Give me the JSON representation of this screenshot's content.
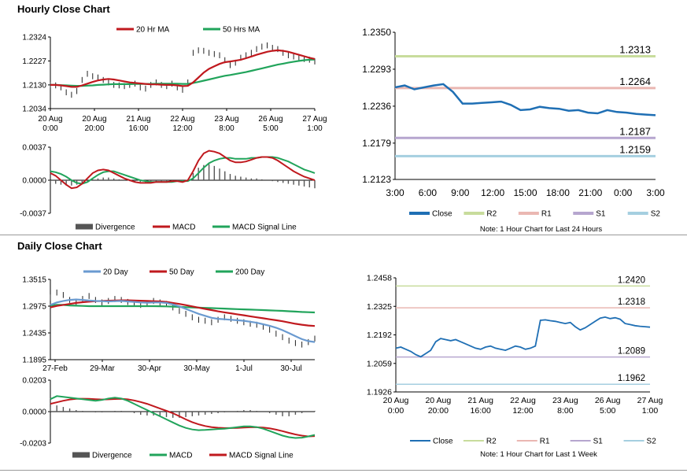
{
  "sections": {
    "hourly_title": "Hourly Close Chart",
    "daily_title": "Daily Close Chart"
  },
  "colors": {
    "close": "#1f6fb4",
    "ma_red": "#c0191e",
    "ma_green": "#21a45b",
    "ma_blue": "#6a9ad0",
    "r2": "#c8dc9c",
    "r1": "#eab7b2",
    "s1": "#b6a6cf",
    "s2": "#a5cfe0",
    "bar": "#555555"
  },
  "chart_data": [
    {
      "id": "hourly-price",
      "type": "line",
      "title": "Hourly Close Chart",
      "x_labels": [
        [
          "20 Aug",
          "0:00"
        ],
        [
          "20 Aug",
          "20:00"
        ],
        [
          "21 Aug",
          "16:00"
        ],
        [
          "22 Aug",
          "12:00"
        ],
        [
          "23 Aug",
          "8:00"
        ],
        [
          "26 Aug",
          "5:00"
        ],
        [
          "27 Aug",
          "1:00"
        ]
      ],
      "y_ticks": [
        "1.2324",
        "1.2227",
        "1.2130",
        "1.2034"
      ],
      "ylim": [
        1.2034,
        1.2324
      ],
      "legend": [
        "20 Hr MA",
        "50 Hrs MA"
      ],
      "close": [
        1.213,
        1.2128,
        1.212,
        1.21,
        1.209,
        1.2105,
        1.215,
        1.2175,
        1.2165,
        1.216,
        1.215,
        1.214,
        1.213,
        1.2128,
        1.2125,
        1.213,
        1.2135,
        1.212,
        1.2115,
        1.213,
        1.214,
        1.213,
        1.2125,
        1.2135,
        1.212,
        1.211,
        1.214,
        1.226,
        1.227,
        1.2268,
        1.226,
        1.2255,
        1.225,
        1.223,
        1.221,
        1.222,
        1.224,
        1.225,
        1.226,
        1.2275,
        1.2285,
        1.229,
        1.228,
        1.2275,
        1.226,
        1.225,
        1.2245,
        1.224,
        1.2235,
        1.2232,
        1.2225
      ],
      "ma20": [
        1.213,
        1.213,
        1.2128,
        1.2125,
        1.2122,
        1.2122,
        1.2128,
        1.2135,
        1.2142,
        1.2148,
        1.2152,
        1.2154,
        1.2152,
        1.2148,
        1.2144,
        1.214,
        1.2138,
        1.2136,
        1.2134,
        1.2132,
        1.2132,
        1.2131,
        1.213,
        1.213,
        1.2128,
        1.2125,
        1.2126,
        1.214,
        1.216,
        1.218,
        1.2195,
        1.2205,
        1.2215,
        1.2222,
        1.2225,
        1.2228,
        1.2232,
        1.2238,
        1.2245,
        1.2252,
        1.2258,
        1.2264,
        1.2268,
        1.227,
        1.2268,
        1.2264,
        1.2258,
        1.2252,
        1.2246,
        1.224,
        1.2235
      ],
      "ma50": [
        1.213,
        1.213,
        1.2129,
        1.2128,
        1.2127,
        1.2126,
        1.2126,
        1.2127,
        1.2128,
        1.213,
        1.2131,
        1.2132,
        1.2133,
        1.2133,
        1.2133,
        1.2133,
        1.2134,
        1.2134,
        1.2134,
        1.2134,
        1.2135,
        1.2135,
        1.2135,
        1.2135,
        1.2135,
        1.2134,
        1.2134,
        1.2138,
        1.2142,
        1.2147,
        1.2152,
        1.2157,
        1.2162,
        1.2167,
        1.217,
        1.2174,
        1.2178,
        1.2182,
        1.2187,
        1.2192,
        1.2197,
        1.2202,
        1.2207,
        1.2212,
        1.2216,
        1.222,
        1.2224,
        1.2227,
        1.223,
        1.2232,
        1.2233
      ]
    },
    {
      "id": "hourly-macd",
      "type": "line",
      "y_ticks": [
        "0.0037",
        "0.0000",
        "-0.0037"
      ],
      "ylim": [
        -0.0037,
        0.0037
      ],
      "legend": [
        "Divergence",
        "MACD",
        "MACD Signal Line"
      ],
      "divergence": [
        -0.0002,
        -0.0004,
        -0.0005,
        -0.0006,
        -0.0006,
        -0.0005,
        -0.0003,
        -0.0001,
        0.0001,
        0.0002,
        0.0003,
        0.0003,
        0.0002,
        0.0001,
        0.0,
        -0.0001,
        -0.0002,
        -0.0002,
        -0.0003,
        -0.0003,
        -0.0002,
        -0.0002,
        -0.0002,
        -0.0001,
        -0.0001,
        -0.0001,
        0.0,
        0.0008,
        0.0014,
        0.0017,
        0.0018,
        0.0016,
        0.0013,
        0.001,
        0.0007,
        0.0005,
        0.0004,
        0.0003,
        0.0002,
        0.0002,
        0.0001,
        0.0,
        -0.0001,
        -0.0002,
        -0.0003,
        -0.0004,
        -0.0005,
        -0.0006,
        -0.0007,
        -0.0008,
        -0.0009
      ],
      "macd": [
        0.0008,
        0.0005,
        0.0,
        -0.0005,
        -0.0009,
        -0.0008,
        -0.0004,
        0.0002,
        0.0008,
        0.0011,
        0.0012,
        0.0011,
        0.0008,
        0.0005,
        0.0002,
        0.0,
        -0.0002,
        -0.0003,
        -0.0003,
        -0.0003,
        -0.0002,
        -0.0002,
        -0.0002,
        -0.0001,
        -0.0001,
        -0.0002,
        0.0,
        0.001,
        0.0022,
        0.003,
        0.0033,
        0.0032,
        0.003,
        0.0026,
        0.0022,
        0.002,
        0.002,
        0.0021,
        0.0023,
        0.0025,
        0.0026,
        0.0026,
        0.0025,
        0.0022,
        0.0018,
        0.0014,
        0.001,
        0.0007,
        0.0004,
        0.0002,
        0.0
      ],
      "signal": [
        0.001,
        0.0009,
        0.0007,
        0.0004,
        0.0,
        -0.0003,
        -0.0004,
        -0.0002,
        0.0002,
        0.0006,
        0.0009,
        0.001,
        0.001,
        0.0008,
        0.0006,
        0.0004,
        0.0002,
        0.0,
        -0.0001,
        -0.0002,
        -0.0002,
        -0.0002,
        -0.0002,
        -0.0002,
        -0.0001,
        -0.0001,
        -0.0001,
        0.0002,
        0.0008,
        0.0014,
        0.0019,
        0.0022,
        0.0024,
        0.0025,
        0.0025,
        0.0024,
        0.0024,
        0.0024,
        0.0025,
        0.0025,
        0.0026,
        0.0026,
        0.0026,
        0.0025,
        0.0023,
        0.0021,
        0.0018,
        0.0015,
        0.0012,
        0.001,
        0.0008
      ]
    },
    {
      "id": "hourly-levels",
      "type": "line",
      "x_labels": [
        "3:00",
        "6:00",
        "9:00",
        "12:00",
        "15:00",
        "18:00",
        "21:00",
        "0:00",
        "3:00"
      ],
      "y_ticks": [
        "1.2350",
        "1.2293",
        "1.2236",
        "1.2179",
        "1.2123"
      ],
      "ylim": [
        1.2123,
        1.235
      ],
      "close": [
        1.2265,
        1.2268,
        1.2262,
        1.2265,
        1.2268,
        1.227,
        1.2258,
        1.224,
        1.224,
        1.2241,
        1.2242,
        1.2243,
        1.2238,
        1.223,
        1.2231,
        1.2235,
        1.2233,
        1.2232,
        1.2229,
        1.223,
        1.2226,
        1.2225,
        1.223,
        1.2227,
        1.2226,
        1.2224,
        1.2223,
        1.2222
      ],
      "levels": [
        {
          "key": "r2",
          "name": "R2",
          "value": 1.2313,
          "label": "1.2313"
        },
        {
          "key": "r1",
          "name": "R1",
          "value": 1.2264,
          "label": "1.2264"
        },
        {
          "key": "s1",
          "name": "S1",
          "value": 1.2187,
          "label": "1.2187"
        },
        {
          "key": "s2",
          "name": "S2",
          "value": 1.2159,
          "label": "1.2159"
        }
      ],
      "legend": [
        "Close",
        "R2",
        "R1",
        "S1",
        "S2"
      ],
      "note": "Note: 1 Hour Chart for Last 24 Hours"
    },
    {
      "id": "daily-price",
      "type": "line",
      "title": "Daily Close Chart",
      "x_labels": [
        "27-Feb",
        "29-Mar",
        "30-Apr",
        "30-May",
        "1-Jul",
        "30-Jul"
      ],
      "y_ticks": [
        "1.3515",
        "1.2975",
        "1.2435",
        "1.1895"
      ],
      "ylim": [
        1.1895,
        1.3515
      ],
      "legend": [
        "20 Day",
        "50 Day",
        "200 Day"
      ],
      "close": [
        1.315,
        1.325,
        1.32,
        1.31,
        1.305,
        1.312,
        1.318,
        1.31,
        1.305,
        1.308,
        1.312,
        1.31,
        1.306,
        1.302,
        1.3,
        1.303,
        1.308,
        1.305,
        1.302,
        1.295,
        1.288,
        1.282,
        1.275,
        1.27,
        1.268,
        1.265,
        1.27,
        1.275,
        1.272,
        1.268,
        1.265,
        1.262,
        1.26,
        1.256,
        1.25,
        1.242,
        1.235,
        1.228,
        1.223,
        1.22,
        1.225,
        1.232
      ],
      "ma20": [
        1.3,
        1.305,
        1.308,
        1.31,
        1.311,
        1.31,
        1.309,
        1.308,
        1.3075,
        1.307,
        1.3075,
        1.308,
        1.307,
        1.306,
        1.305,
        1.3045,
        1.305,
        1.305,
        1.304,
        1.301,
        1.297,
        1.292,
        1.287,
        1.282,
        1.278,
        1.274,
        1.272,
        1.271,
        1.27,
        1.269,
        1.268,
        1.266,
        1.264,
        1.261,
        1.258,
        1.254,
        1.249,
        1.243,
        1.237,
        1.231,
        1.227,
        1.225
      ],
      "ma50": [
        1.295,
        1.298,
        1.3,
        1.302,
        1.304,
        1.3055,
        1.3065,
        1.3075,
        1.308,
        1.3085,
        1.309,
        1.3092,
        1.3092,
        1.309,
        1.3085,
        1.308,
        1.3075,
        1.307,
        1.306,
        1.304,
        1.302,
        1.2995,
        1.297,
        1.2945,
        1.292,
        1.2895,
        1.287,
        1.285,
        1.283,
        1.281,
        1.279,
        1.277,
        1.275,
        1.273,
        1.271,
        1.269,
        1.267,
        1.2645,
        1.262,
        1.26,
        1.2585,
        1.2575
      ],
      "ma200": [
        1.299,
        1.3,
        1.3,
        1.299,
        1.2985,
        1.298,
        1.2975,
        1.2975,
        1.2975,
        1.2975,
        1.2975,
        1.2975,
        1.2975,
        1.2975,
        1.2975,
        1.2975,
        1.2975,
        1.2973,
        1.297,
        1.2965,
        1.296,
        1.2955,
        1.295,
        1.2945,
        1.294,
        1.2935,
        1.293,
        1.2925,
        1.292,
        1.2915,
        1.291,
        1.2905,
        1.29,
        1.2895,
        1.289,
        1.2885,
        1.288,
        1.2872,
        1.2865,
        1.2858,
        1.2852,
        1.2848
      ]
    },
    {
      "id": "daily-macd",
      "type": "line",
      "y_ticks": [
        "0.0203",
        "0.0000",
        "-0.0203"
      ],
      "ylim": [
        -0.0203,
        0.0203
      ],
      "legend": [
        "Divergence",
        "MACD",
        "MACD Signal Line"
      ],
      "divergence": [
        0.003,
        0.004,
        0.003,
        0.002,
        0.001,
        0.0005,
        0.0,
        -0.0005,
        -0.0005,
        0.0,
        0.0005,
        0.0005,
        0.0,
        -0.001,
        -0.002,
        -0.0025,
        -0.0025,
        -0.003,
        -0.0035,
        -0.004,
        -0.004,
        -0.0035,
        -0.003,
        -0.0025,
        -0.002,
        -0.0015,
        -0.001,
        -0.0005,
        0.0,
        0.0005,
        0.001,
        0.001,
        0.0005,
        0.0,
        -0.001,
        -0.002,
        -0.003,
        -0.003,
        -0.002,
        -0.001,
        0.0,
        0.0005
      ],
      "macd": [
        0.008,
        0.01,
        0.0095,
        0.009,
        0.0085,
        0.008,
        0.0075,
        0.007,
        0.0075,
        0.0085,
        0.009,
        0.0085,
        0.007,
        0.005,
        0.003,
        0.001,
        -0.001,
        -0.003,
        -0.005,
        -0.007,
        -0.009,
        -0.0105,
        -0.0115,
        -0.012,
        -0.0118,
        -0.0115,
        -0.0112,
        -0.011,
        -0.0105,
        -0.01,
        -0.0095,
        -0.0095,
        -0.01,
        -0.011,
        -0.0125,
        -0.014,
        -0.0155,
        -0.0165,
        -0.017,
        -0.0168,
        -0.016,
        -0.015
      ],
      "signal": [
        0.005,
        0.006,
        0.007,
        0.0078,
        0.0082,
        0.0083,
        0.0082,
        0.008,
        0.0078,
        0.0079,
        0.0081,
        0.0082,
        0.0079,
        0.0072,
        0.0062,
        0.005,
        0.0035,
        0.002,
        0.0005,
        -0.001,
        -0.003,
        -0.005,
        -0.0068,
        -0.0082,
        -0.0093,
        -0.01,
        -0.0104,
        -0.0106,
        -0.0106,
        -0.0105,
        -0.0103,
        -0.0101,
        -0.0101,
        -0.0103,
        -0.0108,
        -0.0116,
        -0.0126,
        -0.0137,
        -0.0147,
        -0.0155,
        -0.016,
        -0.0158
      ]
    },
    {
      "id": "daily-levels",
      "type": "line",
      "x_labels": [
        [
          "20 Aug",
          "0:00"
        ],
        [
          "20 Aug",
          "20:00"
        ],
        [
          "21 Aug",
          "16:00"
        ],
        [
          "22 Aug",
          "12:00"
        ],
        [
          "23 Aug",
          "8:00"
        ],
        [
          "26 Aug",
          "5:00"
        ],
        [
          "27 Aug",
          "1:00"
        ]
      ],
      "y_ticks": [
        "1.2458",
        "1.2325",
        "1.2192",
        "1.2059",
        "1.1926"
      ],
      "ylim": [
        1.1926,
        1.2458
      ],
      "close": [
        1.213,
        1.2135,
        1.2125,
        1.2115,
        1.21,
        1.209,
        1.2105,
        1.212,
        1.216,
        1.2175,
        1.217,
        1.2165,
        1.217,
        1.216,
        1.215,
        1.214,
        1.213,
        1.2125,
        1.2135,
        1.214,
        1.213,
        1.2125,
        1.212,
        1.213,
        1.214,
        1.2135,
        1.2125,
        1.213,
        1.214,
        1.226,
        1.2262,
        1.2258,
        1.2255,
        1.225,
        1.2245,
        1.225,
        1.223,
        1.2215,
        1.2225,
        1.224,
        1.2255,
        1.227,
        1.2275,
        1.2268,
        1.2272,
        1.2265,
        1.2245,
        1.224,
        1.2235,
        1.2232,
        1.223,
        1.2228
      ],
      "levels": [
        {
          "key": "r2",
          "name": "R2",
          "value": 1.242,
          "label": "1.2420"
        },
        {
          "key": "r1",
          "name": "R1",
          "value": 1.2318,
          "label": "1.2318"
        },
        {
          "key": "s1",
          "name": "S1",
          "value": 1.2089,
          "label": "1.2089"
        },
        {
          "key": "s2",
          "name": "S2",
          "value": 1.1962,
          "label": "1.1962"
        }
      ],
      "legend": [
        "Close",
        "R2",
        "R1",
        "S1",
        "S2"
      ],
      "note": "Note: 1 Hour Chart for Last 1 Week"
    }
  ]
}
